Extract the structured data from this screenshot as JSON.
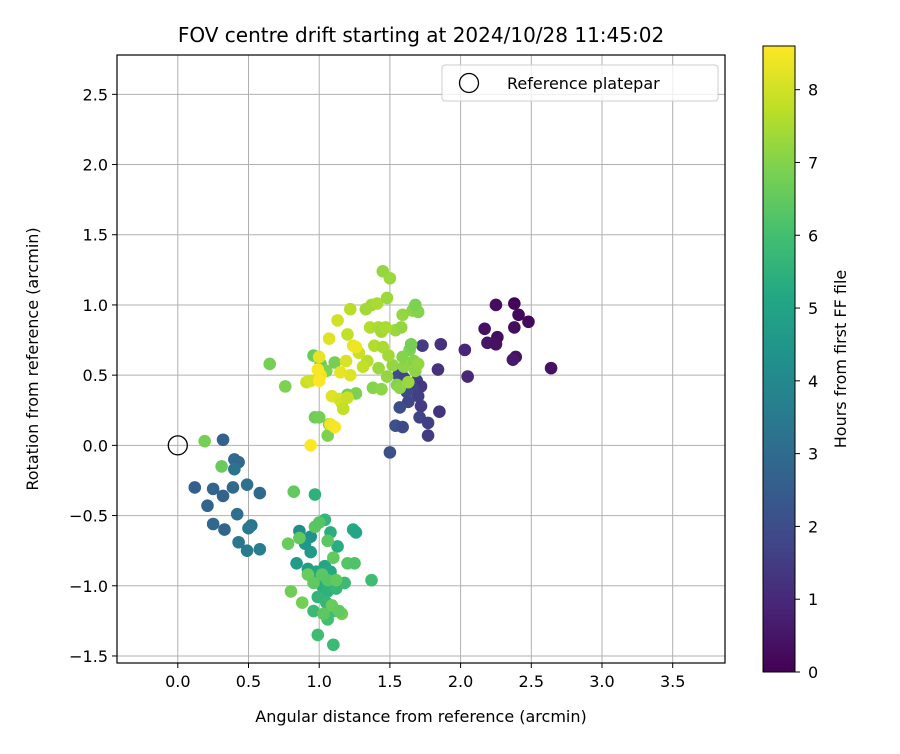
{
  "chart_data": {
    "type": "scatter",
    "title": "FOV centre drift starting at 2024/10/28 11:45:02",
    "xlabel": "Angular distance from reference (arcmin)",
    "ylabel": "Rotation from reference (arcmin)",
    "xlim": [
      -0.43,
      3.87
    ],
    "ylim": [
      -1.55,
      2.78
    ],
    "xticks": [
      "0.0",
      "0.5",
      "1.0",
      "1.5",
      "2.0",
      "2.5",
      "3.0",
      "3.5"
    ],
    "yticks": [
      "−1.5",
      "−1.0",
      "−0.5",
      "0.0",
      "0.5",
      "1.0",
      "1.5",
      "2.0",
      "2.5"
    ],
    "xtick_values": [
      0,
      0.5,
      1.0,
      1.5,
      2.0,
      2.5,
      3.0,
      3.5
    ],
    "ytick_values": [
      -1.5,
      -1.0,
      -0.5,
      0,
      0.5,
      1.0,
      1.5,
      2.0,
      2.5
    ],
    "grid": true,
    "legend": {
      "position": "top-right",
      "entries": [
        {
          "label": "Reference platepar",
          "marker": "open-circle",
          "color": "#000000"
        }
      ]
    },
    "reference_point": {
      "x": 0.0,
      "y": 0.0
    },
    "colorbar": {
      "label": "Hours from first FF file",
      "range": [
        0,
        8.6
      ],
      "ticks": [
        "0",
        "1",
        "2",
        "3",
        "4",
        "5",
        "6",
        "7",
        "8"
      ],
      "tick_values": [
        0,
        1,
        2,
        3,
        4,
        5,
        6,
        7,
        8
      ],
      "colormap": "viridis"
    },
    "points": [
      {
        "x": 2.38,
        "y": 1.01,
        "h": 0.1
      },
      {
        "x": 2.25,
        "y": 1.0,
        "h": 0.3
      },
      {
        "x": 2.41,
        "y": 0.93,
        "h": 0.2
      },
      {
        "x": 2.48,
        "y": 0.88,
        "h": 0.2
      },
      {
        "x": 2.38,
        "y": 0.84,
        "h": 0.3
      },
      {
        "x": 2.17,
        "y": 0.83,
        "h": 0.4
      },
      {
        "x": 2.26,
        "y": 0.77,
        "h": 0.3
      },
      {
        "x": 2.19,
        "y": 0.73,
        "h": 0.5
      },
      {
        "x": 2.25,
        "y": 0.72,
        "h": 0.4
      },
      {
        "x": 2.39,
        "y": 0.63,
        "h": 0.4
      },
      {
        "x": 2.37,
        "y": 0.61,
        "h": 0.6
      },
      {
        "x": 2.64,
        "y": 0.55,
        "h": 0.4
      },
      {
        "x": 2.03,
        "y": 0.68,
        "h": 0.9
      },
      {
        "x": 2.05,
        "y": 0.49,
        "h": 1.0
      },
      {
        "x": 1.86,
        "y": 0.72,
        "h": 1.2
      },
      {
        "x": 1.73,
        "y": 0.71,
        "h": 1.5
      },
      {
        "x": 1.84,
        "y": 0.54,
        "h": 1.2
      },
      {
        "x": 1.69,
        "y": 0.46,
        "h": 1.6
      },
      {
        "x": 1.72,
        "y": 0.42,
        "h": 1.4
      },
      {
        "x": 1.66,
        "y": 0.41,
        "h": 1.7
      },
      {
        "x": 1.62,
        "y": 0.38,
        "h": 1.9
      },
      {
        "x": 1.7,
        "y": 0.35,
        "h": 1.6
      },
      {
        "x": 1.63,
        "y": 0.31,
        "h": 1.8
      },
      {
        "x": 1.72,
        "y": 0.28,
        "h": 1.5
      },
      {
        "x": 1.57,
        "y": 0.27,
        "h": 2.0
      },
      {
        "x": 1.85,
        "y": 0.24,
        "h": 1.3
      },
      {
        "x": 1.71,
        "y": 0.2,
        "h": 1.7
      },
      {
        "x": 1.77,
        "y": 0.16,
        "h": 1.6
      },
      {
        "x": 1.54,
        "y": 0.14,
        "h": 2.1
      },
      {
        "x": 1.59,
        "y": 0.13,
        "h": 1.9
      },
      {
        "x": 1.77,
        "y": 0.07,
        "h": 1.5
      },
      {
        "x": 1.5,
        "y": -0.05,
        "h": 2.1
      },
      {
        "x": 1.56,
        "y": 0.5,
        "h": 2.0
      },
      {
        "x": 1.6,
        "y": 0.48,
        "h": 1.8
      },
      {
        "x": 0.32,
        "y": 0.04,
        "h": 2.7
      },
      {
        "x": 0.4,
        "y": -0.1,
        "h": 3.0
      },
      {
        "x": 0.43,
        "y": -0.12,
        "h": 2.9
      },
      {
        "x": 0.4,
        "y": -0.17,
        "h": 3.3
      },
      {
        "x": 0.12,
        "y": -0.3,
        "h": 2.6
      },
      {
        "x": 0.25,
        "y": -0.31,
        "h": 2.8
      },
      {
        "x": 0.32,
        "y": -0.36,
        "h": 2.7
      },
      {
        "x": 0.39,
        "y": -0.3,
        "h": 3.0
      },
      {
        "x": 0.49,
        "y": -0.28,
        "h": 3.2
      },
      {
        "x": 0.58,
        "y": -0.34,
        "h": 2.9
      },
      {
        "x": 0.21,
        "y": -0.43,
        "h": 2.8
      },
      {
        "x": 0.42,
        "y": -0.49,
        "h": 3.1
      },
      {
        "x": 0.25,
        "y": -0.56,
        "h": 2.9
      },
      {
        "x": 0.33,
        "y": -0.6,
        "h": 2.8
      },
      {
        "x": 0.52,
        "y": -0.57,
        "h": 3.3
      },
      {
        "x": 0.5,
        "y": -0.59,
        "h": 3.5
      },
      {
        "x": 0.43,
        "y": -0.69,
        "h": 3.4
      },
      {
        "x": 0.49,
        "y": -0.75,
        "h": 3.5
      },
      {
        "x": 0.58,
        "y": -0.74,
        "h": 3.6
      },
      {
        "x": 0.97,
        "y": -0.35,
        "h": 5.5
      },
      {
        "x": 0.86,
        "y": -0.61,
        "h": 4.2
      },
      {
        "x": 0.94,
        "y": -0.65,
        "h": 4.3
      },
      {
        "x": 0.9,
        "y": -0.7,
        "h": 4.5
      },
      {
        "x": 0.94,
        "y": -0.76,
        "h": 4.6
      },
      {
        "x": 0.84,
        "y": -0.84,
        "h": 4.7
      },
      {
        "x": 0.92,
        "y": -0.88,
        "h": 4.8
      },
      {
        "x": 0.98,
        "y": -0.9,
        "h": 5.0
      },
      {
        "x": 1.04,
        "y": -0.86,
        "h": 5.1
      },
      {
        "x": 1.08,
        "y": -0.9,
        "h": 5.2
      },
      {
        "x": 0.96,
        "y": -0.96,
        "h": 5.3
      },
      {
        "x": 1.02,
        "y": -1.0,
        "h": 5.4
      },
      {
        "x": 1.06,
        "y": -1.04,
        "h": 5.5
      },
      {
        "x": 0.99,
        "y": -1.08,
        "h": 5.6
      },
      {
        "x": 1.05,
        "y": -1.12,
        "h": 5.7
      },
      {
        "x": 0.96,
        "y": -1.18,
        "h": 5.8
      },
      {
        "x": 1.1,
        "y": -1.18,
        "h": 5.9
      },
      {
        "x": 1.06,
        "y": -1.24,
        "h": 6.0
      },
      {
        "x": 0.99,
        "y": -1.35,
        "h": 5.9
      },
      {
        "x": 1.1,
        "y": -1.42,
        "h": 5.8
      },
      {
        "x": 1.12,
        "y": -1.02,
        "h": 5.7
      },
      {
        "x": 1.18,
        "y": -0.98,
        "h": 5.8
      },
      {
        "x": 1.13,
        "y": -0.72,
        "h": 5.3
      },
      {
        "x": 1.08,
        "y": -0.62,
        "h": 5.4
      },
      {
        "x": 1.04,
        "y": -0.53,
        "h": 5.6
      },
      {
        "x": 1.24,
        "y": -0.6,
        "h": 5.2
      },
      {
        "x": 1.26,
        "y": -0.62,
        "h": 5.1
      },
      {
        "x": 1.37,
        "y": -0.96,
        "h": 5.9
      },
      {
        "x": 1.2,
        "y": -0.84,
        "h": 6.3
      },
      {
        "x": 1.25,
        "y": -0.84,
        "h": 6.2
      },
      {
        "x": 0.82,
        "y": -0.33,
        "h": 6.5
      },
      {
        "x": 0.78,
        "y": -0.7,
        "h": 6.6
      },
      {
        "x": 0.86,
        "y": -0.66,
        "h": 6.5
      },
      {
        "x": 0.97,
        "y": -0.58,
        "h": 6.4
      },
      {
        "x": 1.0,
        "y": -0.55,
        "h": 6.3
      },
      {
        "x": 1.06,
        "y": -0.68,
        "h": 6.4
      },
      {
        "x": 1.1,
        "y": -0.8,
        "h": 6.5
      },
      {
        "x": 0.92,
        "y": -0.92,
        "h": 6.6
      },
      {
        "x": 0.96,
        "y": -0.98,
        "h": 6.5
      },
      {
        "x": 1.02,
        "y": -0.92,
        "h": 6.4
      },
      {
        "x": 1.06,
        "y": -0.96,
        "h": 6.3
      },
      {
        "x": 0.8,
        "y": -1.04,
        "h": 6.7
      },
      {
        "x": 0.88,
        "y": -1.12,
        "h": 6.8
      },
      {
        "x": 1.16,
        "y": -1.2,
        "h": 6.7
      },
      {
        "x": 1.09,
        "y": -1.14,
        "h": 6.6
      },
      {
        "x": 1.14,
        "y": -1.18,
        "h": 6.5
      },
      {
        "x": 1.03,
        "y": -1.2,
        "h": 6.4
      },
      {
        "x": 1.12,
        "y": -0.96,
        "h": 6.5
      },
      {
        "x": 0.19,
        "y": 0.03,
        "h": 6.8
      },
      {
        "x": 0.31,
        "y": -0.15,
        "h": 6.6
      },
      {
        "x": 0.65,
        "y": 0.58,
        "h": 6.8
      },
      {
        "x": 0.76,
        "y": 0.42,
        "h": 6.9
      },
      {
        "x": 0.96,
        "y": 0.64,
        "h": 6.6
      },
      {
        "x": 1.01,
        "y": 0.58,
        "h": 6.7
      },
      {
        "x": 1.11,
        "y": 0.59,
        "h": 6.8
      },
      {
        "x": 1.05,
        "y": 0.53,
        "h": 6.9
      },
      {
        "x": 0.97,
        "y": 0.2,
        "h": 6.7
      },
      {
        "x": 1.0,
        "y": 0.2,
        "h": 6.8
      },
      {
        "x": 1.06,
        "y": 0.07,
        "h": 6.9
      },
      {
        "x": 1.07,
        "y": 0.15,
        "h": 7.0
      },
      {
        "x": 1.2,
        "y": 0.36,
        "h": 6.8
      },
      {
        "x": 1.26,
        "y": 0.37,
        "h": 6.9
      },
      {
        "x": 1.38,
        "y": 0.41,
        "h": 7.0
      },
      {
        "x": 1.44,
        "y": 0.4,
        "h": 7.1
      },
      {
        "x": 1.55,
        "y": 0.43,
        "h": 7.0
      },
      {
        "x": 1.57,
        "y": 0.41,
        "h": 7.1
      },
      {
        "x": 1.48,
        "y": 0.49,
        "h": 7.2
      },
      {
        "x": 1.42,
        "y": 0.55,
        "h": 7.3
      },
      {
        "x": 1.52,
        "y": 0.57,
        "h": 7.2
      },
      {
        "x": 1.6,
        "y": 0.56,
        "h": 7.1
      },
      {
        "x": 1.67,
        "y": 0.6,
        "h": 7.0
      },
      {
        "x": 1.64,
        "y": 0.68,
        "h": 6.9
      },
      {
        "x": 1.65,
        "y": 0.72,
        "h": 6.8
      },
      {
        "x": 1.59,
        "y": 0.63,
        "h": 7.0
      },
      {
        "x": 1.68,
        "y": 0.53,
        "h": 7.1
      },
      {
        "x": 1.7,
        "y": 0.58,
        "h": 7.2
      },
      {
        "x": 1.63,
        "y": 0.45,
        "h": 7.3
      },
      {
        "x": 1.45,
        "y": 1.24,
        "h": 7.2
      },
      {
        "x": 1.5,
        "y": 1.19,
        "h": 7.3
      },
      {
        "x": 1.37,
        "y": 1.0,
        "h": 7.4
      },
      {
        "x": 1.41,
        "y": 1.01,
        "h": 7.5
      },
      {
        "x": 1.33,
        "y": 0.97,
        "h": 7.4
      },
      {
        "x": 1.48,
        "y": 1.05,
        "h": 7.3
      },
      {
        "x": 1.59,
        "y": 0.93,
        "h": 7.2
      },
      {
        "x": 1.66,
        "y": 0.96,
        "h": 7.1
      },
      {
        "x": 1.7,
        "y": 0.95,
        "h": 7.0
      },
      {
        "x": 1.68,
        "y": 1.0,
        "h": 6.9
      },
      {
        "x": 1.54,
        "y": 0.82,
        "h": 7.3
      },
      {
        "x": 1.58,
        "y": 0.84,
        "h": 7.2
      },
      {
        "x": 1.36,
        "y": 0.84,
        "h": 7.6
      },
      {
        "x": 1.42,
        "y": 0.84,
        "h": 7.5
      },
      {
        "x": 1.44,
        "y": 0.81,
        "h": 7.4
      },
      {
        "x": 1.47,
        "y": 0.84,
        "h": 7.5
      },
      {
        "x": 1.39,
        "y": 0.71,
        "h": 7.6
      },
      {
        "x": 1.45,
        "y": 0.7,
        "h": 7.5
      },
      {
        "x": 1.49,
        "y": 0.64,
        "h": 7.4
      },
      {
        "x": 1.34,
        "y": 0.6,
        "h": 7.7
      },
      {
        "x": 1.31,
        "y": 0.56,
        "h": 7.8
      },
      {
        "x": 1.28,
        "y": 0.66,
        "h": 7.9
      },
      {
        "x": 1.2,
        "y": 0.79,
        "h": 7.8
      },
      {
        "x": 1.22,
        "y": 0.97,
        "h": 7.7
      },
      {
        "x": 1.13,
        "y": 0.89,
        "h": 8.0
      },
      {
        "x": 1.07,
        "y": 0.76,
        "h": 8.2
      },
      {
        "x": 1.24,
        "y": 0.71,
        "h": 8.3
      },
      {
        "x": 1.26,
        "y": 0.7,
        "h": 8.4
      },
      {
        "x": 1.19,
        "y": 0.6,
        "h": 8.1
      },
      {
        "x": 1.22,
        "y": 0.5,
        "h": 8.2
      },
      {
        "x": 1.15,
        "y": 0.52,
        "h": 8.3
      },
      {
        "x": 1.01,
        "y": 0.5,
        "h": 8.4
      },
      {
        "x": 0.99,
        "y": 0.54,
        "h": 8.5
      },
      {
        "x": 0.91,
        "y": 0.45,
        "h": 7.9
      },
      {
        "x": 0.94,
        "y": 0.46,
        "h": 8.0
      },
      {
        "x": 1.0,
        "y": 0.46,
        "h": 8.6
      },
      {
        "x": 1.09,
        "y": 0.35,
        "h": 8.2
      },
      {
        "x": 1.14,
        "y": 0.33,
        "h": 8.1
      },
      {
        "x": 1.16,
        "y": 0.3,
        "h": 8.0
      },
      {
        "x": 1.2,
        "y": 0.34,
        "h": 7.9
      },
      {
        "x": 1.17,
        "y": 0.26,
        "h": 7.8
      },
      {
        "x": 1.08,
        "y": 0.15,
        "h": 8.4
      },
      {
        "x": 1.11,
        "y": 0.13,
        "h": 8.5
      },
      {
        "x": 0.94,
        "y": 0.0,
        "h": 8.6
      },
      {
        "x": 1.0,
        "y": 0.63,
        "h": 8.3
      }
    ]
  }
}
